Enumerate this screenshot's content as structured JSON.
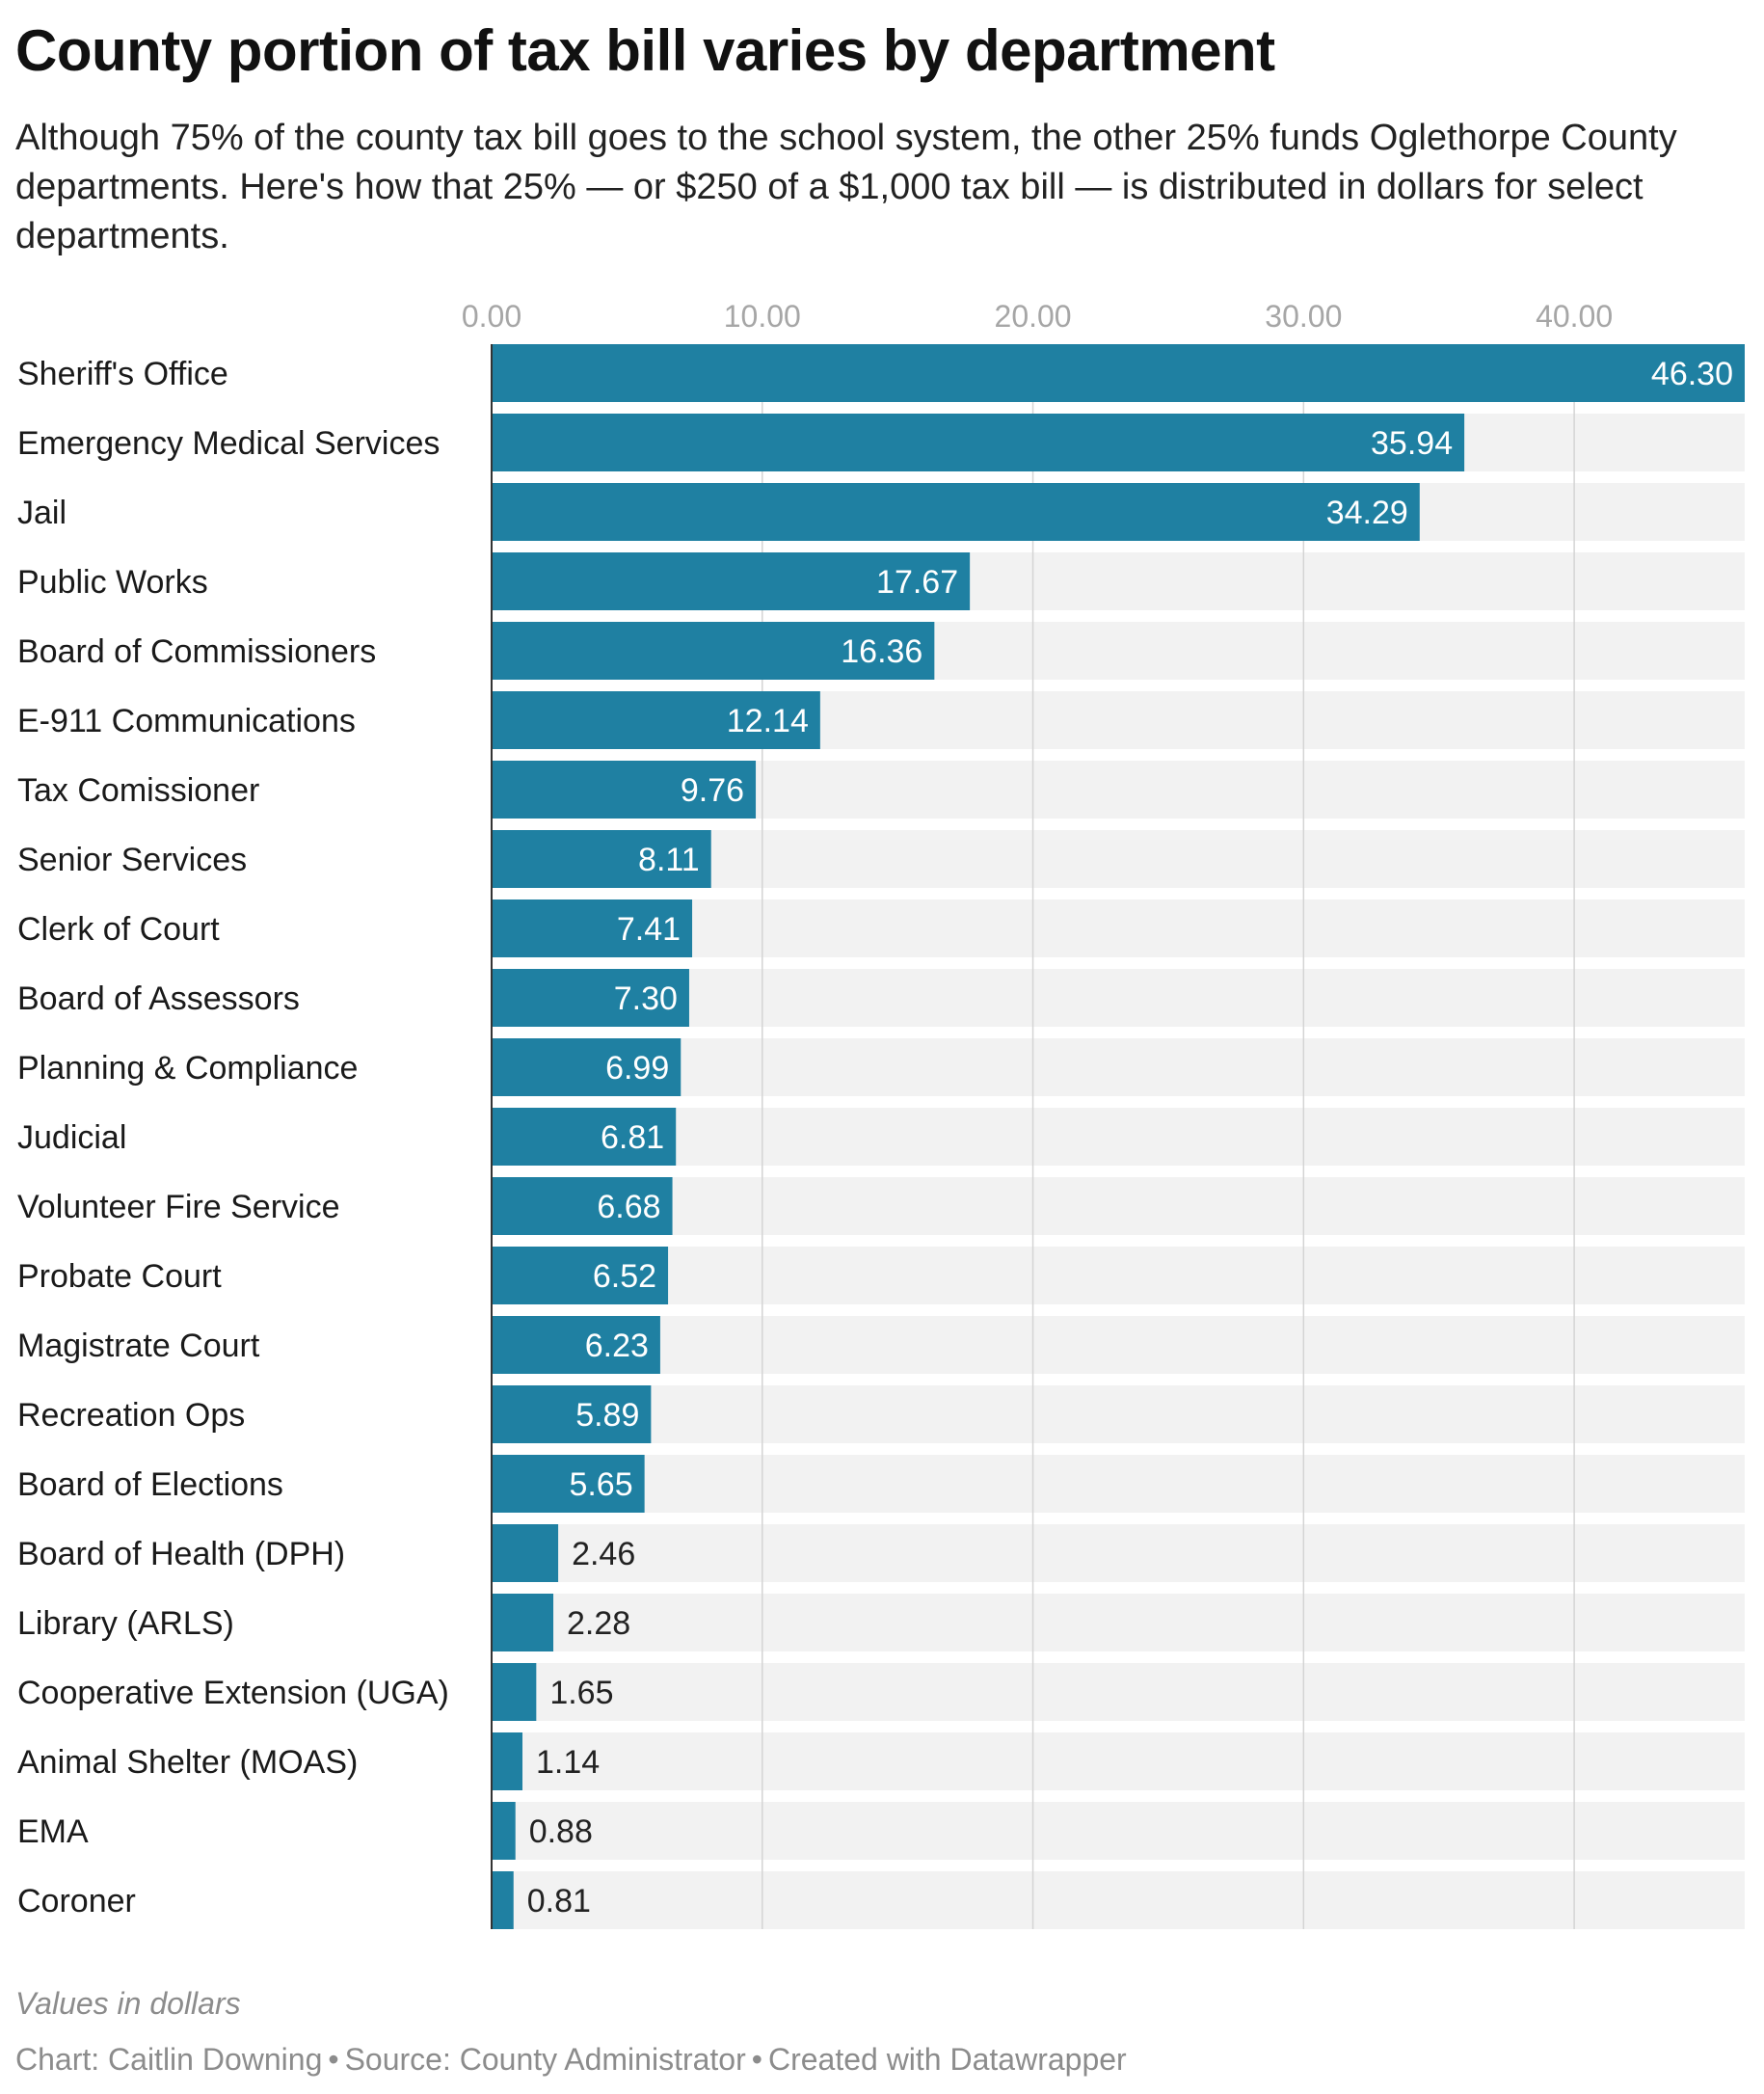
{
  "title": "County portion of tax bill varies by department",
  "subtitle": "Although 75% of the county tax bill goes to the school system, the other 25% funds Oglethorpe County departments. Here's how that 25% — or $250 of a $1,000 tax bill — is distributed in dollars for select departments.",
  "notes": "Values in dollars",
  "footer": {
    "chart_credit": "Chart: Caitlin Downing",
    "source": "Source: County Administrator",
    "tool": "Created with Datawrapper",
    "separator": "•"
  },
  "colors": {
    "bar": "#1f80a2",
    "track": "#f2f2f2",
    "grid": "#d4d4d4",
    "tick_label": "#a6a6a6",
    "label_inside": "#ffffff",
    "label_outside": "#222222"
  },
  "chart_data": {
    "type": "bar",
    "orientation": "horizontal",
    "categories": [
      "Sheriff's Office",
      "Emergency Medical Services",
      "Jail",
      "Public Works",
      "Board of Commissioners",
      "E-911 Communications",
      "Tax Comissioner",
      "Senior Services",
      "Clerk of Court",
      "Board of Assessors",
      "Planning & Compliance",
      "Judicial",
      "Volunteer Fire Service",
      "Probate Court",
      "Magistrate Court",
      "Recreation Ops",
      "Board of Elections",
      "Board of Health (DPH)",
      "Library (ARLS)",
      "Cooperative Extension (UGA)",
      "Animal Shelter (MOAS)",
      "EMA",
      "Coroner"
    ],
    "values": [
      46.3,
      35.94,
      34.29,
      17.67,
      16.36,
      12.14,
      9.76,
      8.11,
      7.41,
      7.3,
      6.99,
      6.81,
      6.68,
      6.52,
      6.23,
      5.89,
      5.65,
      2.46,
      2.28,
      1.65,
      1.14,
      0.88,
      0.81
    ],
    "value_labels": [
      "46.30",
      "35.94",
      "34.29",
      "17.67",
      "16.36",
      "12.14",
      "9.76",
      "8.11",
      "7.41",
      "7.30",
      "6.99",
      "6.81",
      "6.68",
      "6.52",
      "6.23",
      "5.89",
      "5.65",
      "2.46",
      "2.28",
      "1.65",
      "1.14",
      "0.88",
      "0.81"
    ],
    "x_ticks": [
      0,
      10,
      20,
      30,
      40
    ],
    "x_tick_labels": [
      "0.00",
      "10.00",
      "20.00",
      "30.00",
      "40.00"
    ],
    "xlim": [
      0,
      46.3
    ],
    "grid": true,
    "legend": "none"
  }
}
